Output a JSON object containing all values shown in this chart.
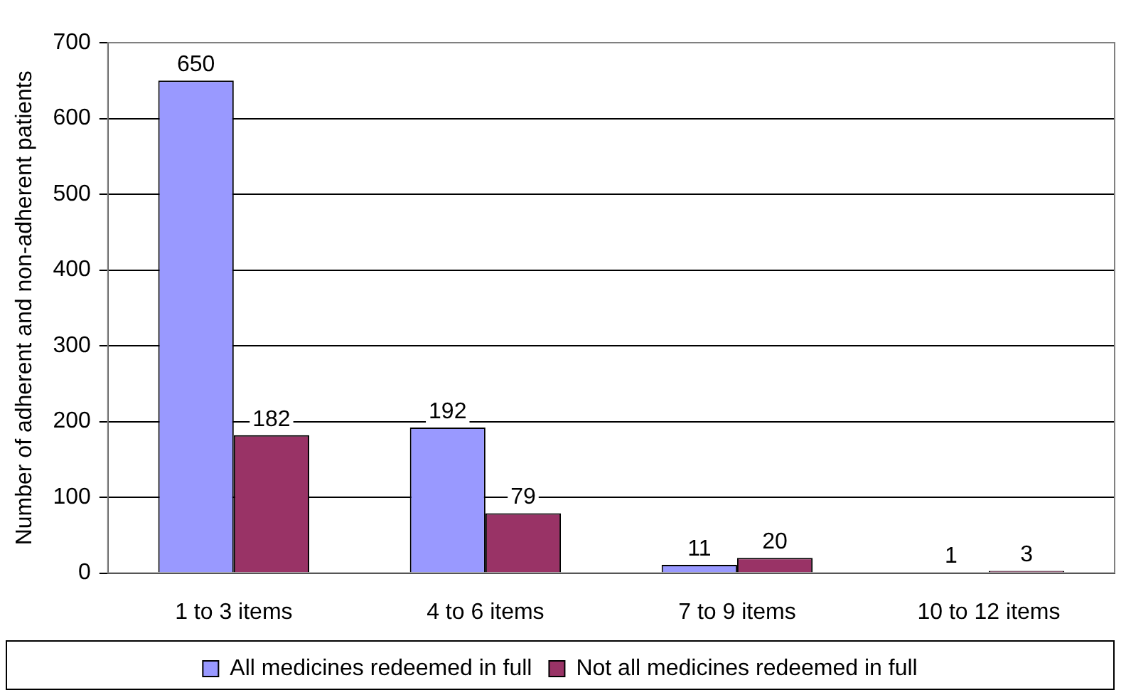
{
  "chart_data": {
    "type": "bar",
    "ylabel": "Number of adherent and non-adherent patients",
    "categories": [
      "1 to 3 items",
      "4 to 6 items",
      "7 to 9 items",
      "10 to 12 items"
    ],
    "series": [
      {
        "name": "All medicines redeemed in full",
        "color": "#9999ff",
        "values": [
          650,
          192,
          11,
          1
        ]
      },
      {
        "name": "Not all medicines redeemed in full",
        "color": "#993366",
        "values": [
          182,
          79,
          20,
          3
        ]
      }
    ],
    "ylim": [
      0,
      700
    ],
    "yticks": [
      0,
      100,
      200,
      300,
      400,
      500,
      600,
      700
    ],
    "grid": "y",
    "legend": "bottom",
    "data_labels": true
  }
}
